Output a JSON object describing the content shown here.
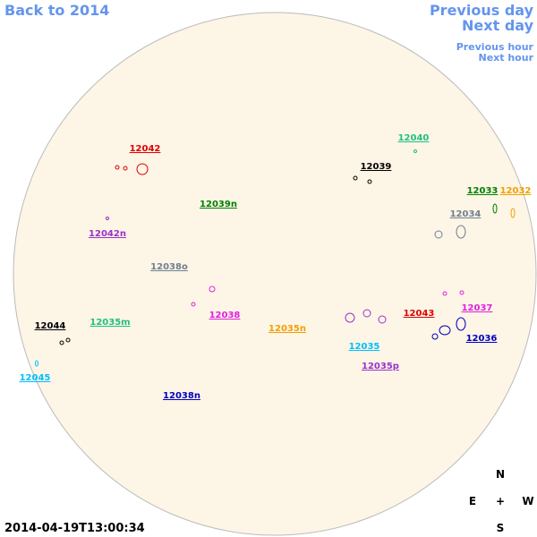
{
  "navigation": {
    "back": "Back to 2014",
    "previous_day": "Previous day",
    "next_day": "Next day",
    "previous_hour": "Previous hour",
    "next_hour": "Next hour"
  },
  "regions": [
    {
      "label": "12042"
    },
    {
      "label": "12040"
    },
    {
      "label": "12039"
    },
    {
      "label": "12033"
    },
    {
      "label": "12032"
    },
    {
      "label": "12039n"
    },
    {
      "label": "12034"
    },
    {
      "label": "12042n"
    },
    {
      "label": "12038o"
    },
    {
      "label": "12038"
    },
    {
      "label": "12043"
    },
    {
      "label": "12037"
    },
    {
      "label": "12044"
    },
    {
      "label": "12035m"
    },
    {
      "label": "12035n"
    },
    {
      "label": "12036"
    },
    {
      "label": "12035"
    },
    {
      "label": "12035p"
    },
    {
      "label": "12045"
    },
    {
      "label": "12038n"
    }
  ],
  "compass": {
    "north": "N",
    "east": "E",
    "center": "+",
    "west": "W",
    "south": "S"
  },
  "timestamp": "2014-04-19T13:00:34"
}
